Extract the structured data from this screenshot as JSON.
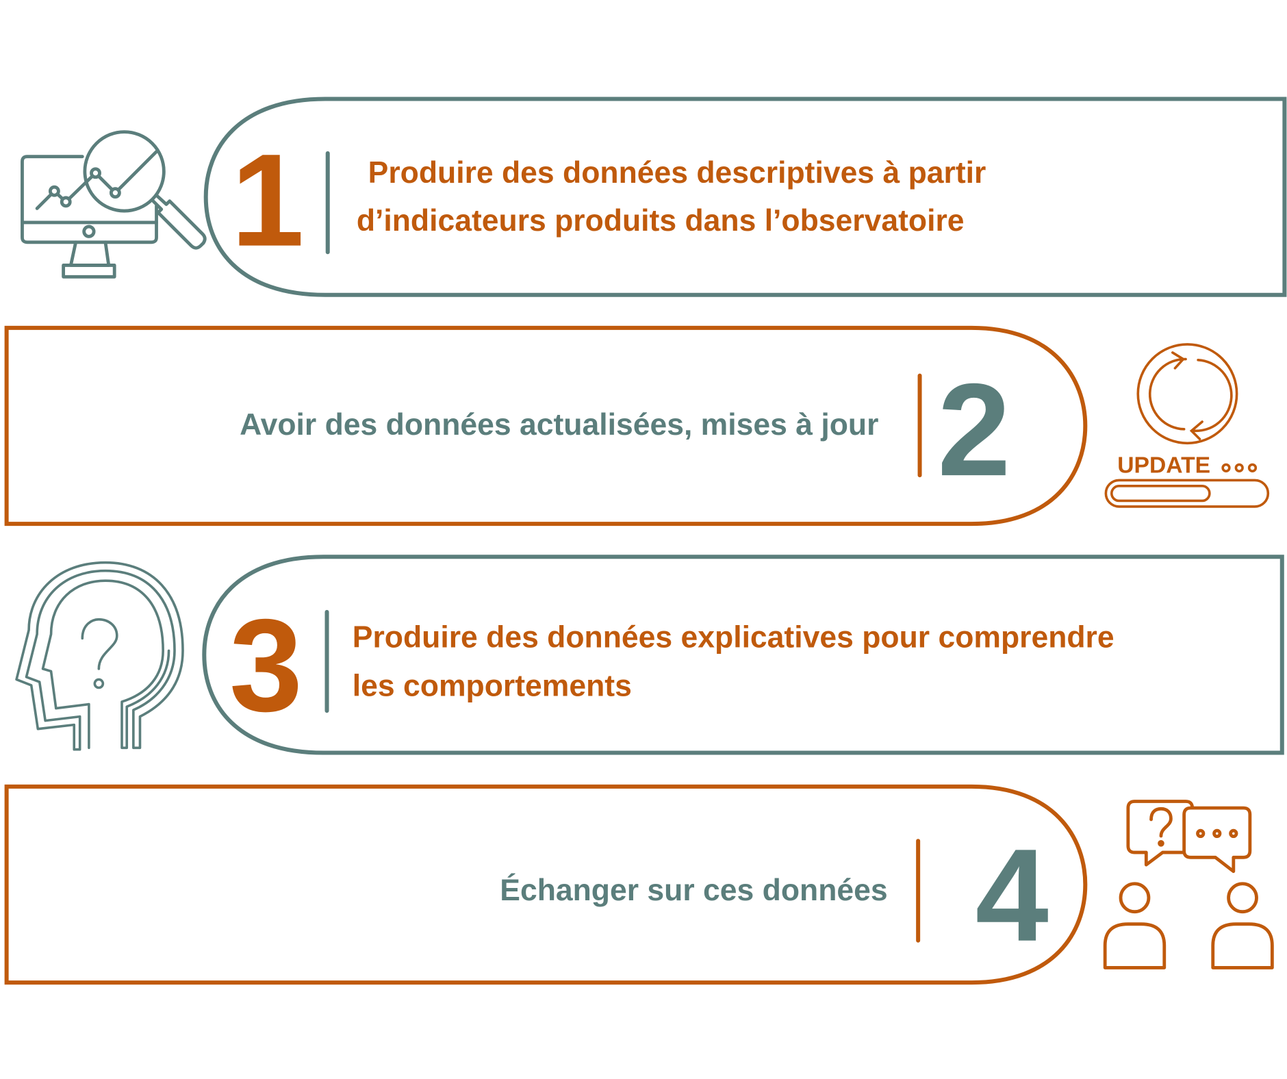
{
  "colors": {
    "teal": "#5b7e7c",
    "orange": "#c05a0c"
  },
  "items": [
    {
      "number": "1",
      "lines": [
        "Produire des données descriptives à partir",
        "d’indicateurs produits dans l’observatoire"
      ],
      "icon": "monitor-chart-magnifier-icon"
    },
    {
      "number": "2",
      "lines": [
        "Avoir des données actualisées, mises à jour"
      ],
      "icon": "update-refresh-icon",
      "icon_label": "UPDATE",
      "progress": 0.65
    },
    {
      "number": "3",
      "lines": [
        "Produire des données explicatives pour comprendre",
        "les comportements"
      ],
      "icon": "head-question-icon"
    },
    {
      "number": "4",
      "lines": [
        "Échanger sur ces données"
      ],
      "icon": "people-conversation-icon"
    }
  ]
}
